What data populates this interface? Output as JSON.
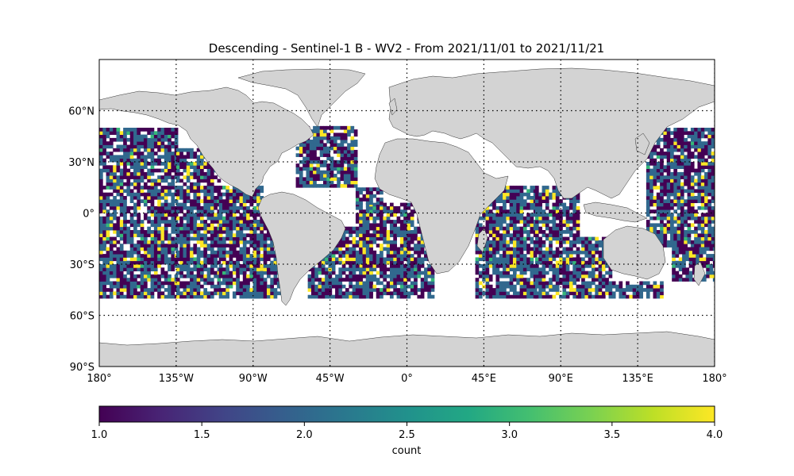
{
  "chart_data": {
    "type": "heatmap",
    "title": "Descending - Sentinel-1 B - WV2 - From 2021/11/01 to 2021/11/21",
    "projection": "PlateCarree",
    "extent": {
      "lon": [
        -180,
        180
      ],
      "lat": [
        -90,
        90
      ]
    },
    "x_ticks": [
      {
        "value": -180,
        "label": "180°"
      },
      {
        "value": -135,
        "label": "135°W"
      },
      {
        "value": -90,
        "label": "90°W"
      },
      {
        "value": -45,
        "label": "45°W"
      },
      {
        "value": 0,
        "label": "0°"
      },
      {
        "value": 45,
        "label": "45°E"
      },
      {
        "value": 90,
        "label": "90°E"
      },
      {
        "value": 135,
        "label": "135°E"
      },
      {
        "value": 180,
        "label": "180°"
      }
    ],
    "y_ticks": [
      {
        "value": -90,
        "label": "90°S"
      },
      {
        "value": -60,
        "label": "60°S"
      },
      {
        "value": -30,
        "label": "30°S"
      },
      {
        "value": 0,
        "label": "0°"
      },
      {
        "value": 30,
        "label": "30°N"
      },
      {
        "value": 60,
        "label": "60°N"
      }
    ],
    "gridlines": {
      "lon": [
        -135,
        -90,
        -45,
        0,
        45,
        90,
        135,
        180
      ],
      "lat": [
        -60,
        -30,
        0,
        30,
        60
      ],
      "style": "dotted"
    },
    "cell_size_deg": 2,
    "ocean_regions_with_data": [
      {
        "lon": [
          -180,
          -135
        ],
        "lat": [
          -50,
          50
        ]
      },
      {
        "lon": [
          -135,
          -110
        ],
        "lat": [
          -50,
          38
        ]
      },
      {
        "lon": [
          -110,
          -85
        ],
        "lat": [
          -50,
          15
        ]
      },
      {
        "lon": [
          -90,
          -75
        ],
        "lat": [
          -50,
          -5
        ]
      },
      {
        "lon": [
          -65,
          -30
        ],
        "lat": [
          15,
          50
        ]
      },
      {
        "lon": [
          -58,
          -20
        ],
        "lat": [
          -50,
          -8
        ]
      },
      {
        "lon": [
          -30,
          15
        ],
        "lat": [
          -50,
          5
        ]
      },
      {
        "lon": [
          -30,
          -15
        ],
        "lat": [
          5,
          15
        ]
      },
      {
        "lon": [
          40,
          75
        ],
        "lat": [
          -50,
          15
        ]
      },
      {
        "lon": [
          75,
          100
        ],
        "lat": [
          -50,
          15
        ]
      },
      {
        "lon": [
          100,
          120
        ],
        "lat": [
          -50,
          -15
        ]
      },
      {
        "lon": [
          120,
          150
        ],
        "lat": [
          -50,
          -40
        ]
      },
      {
        "lon": [
          140,
          180
        ],
        "lat": [
          -20,
          50
        ]
      },
      {
        "lon": [
          155,
          180
        ],
        "lat": [
          -40,
          -20
        ]
      }
    ],
    "value_distribution": {
      "1": 0.4,
      "2": 0.49,
      "3": 0.02,
      "4": 0.09
    },
    "colorbar": {
      "label": "count",
      "range": [
        1.0,
        4.0
      ],
      "colormap": "viridis",
      "ticks": [
        "1.0",
        "1.5",
        "2.0",
        "2.5",
        "3.0",
        "3.5",
        "4.0"
      ],
      "orientation": "horizontal",
      "placement": "bottom"
    },
    "colors": {
      "land": "#d3d3d3",
      "coastline": "#333333",
      "v1": "#440154",
      "v2": "#31688e",
      "v3": "#35b779",
      "v4": "#fde725"
    }
  }
}
